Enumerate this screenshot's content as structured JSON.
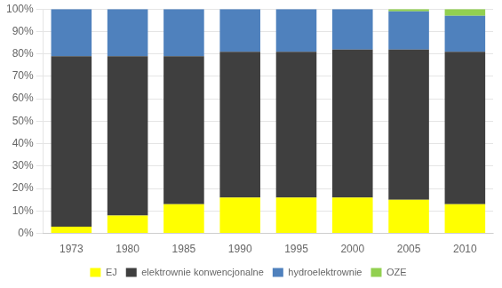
{
  "chart_data": {
    "type": "bar",
    "stacked": true,
    "categories": [
      "1973",
      "1980",
      "1985",
      "1990",
      "1995",
      "2000",
      "2005",
      "2010"
    ],
    "series": [
      {
        "name": "EJ",
        "color": "#ffff00",
        "values": [
          3,
          8,
          13,
          16,
          16,
          16,
          15,
          13
        ]
      },
      {
        "name": "elektrownie konwencjonalne",
        "color": "#3f3f3f",
        "values": [
          76,
          71,
          66,
          65,
          65,
          66,
          67,
          68
        ]
      },
      {
        "name": "hydroelektrownie",
        "color": "#4f81bd",
        "values": [
          21,
          21,
          21,
          19,
          19,
          18,
          17,
          16
        ]
      },
      {
        "name": "OZE",
        "color": "#92d050",
        "values": [
          0,
          0,
          0,
          0,
          0,
          0,
          1,
          3
        ]
      }
    ],
    "ylim": [
      0,
      100
    ],
    "yticks": [
      {
        "value": 0,
        "label": "0%"
      },
      {
        "value": 10,
        "label": "10%"
      },
      {
        "value": 20,
        "label": "20%"
      },
      {
        "value": 30,
        "label": "30%"
      },
      {
        "value": 40,
        "label": "40%"
      },
      {
        "value": 50,
        "label": "50%"
      },
      {
        "value": 60,
        "label": "60%"
      },
      {
        "value": 70,
        "label": "70%"
      },
      {
        "value": 80,
        "label": "80%"
      },
      {
        "value": 90,
        "label": "90%"
      },
      {
        "value": 100,
        "label": "100%"
      }
    ],
    "grid": true,
    "legend": "bottom"
  }
}
